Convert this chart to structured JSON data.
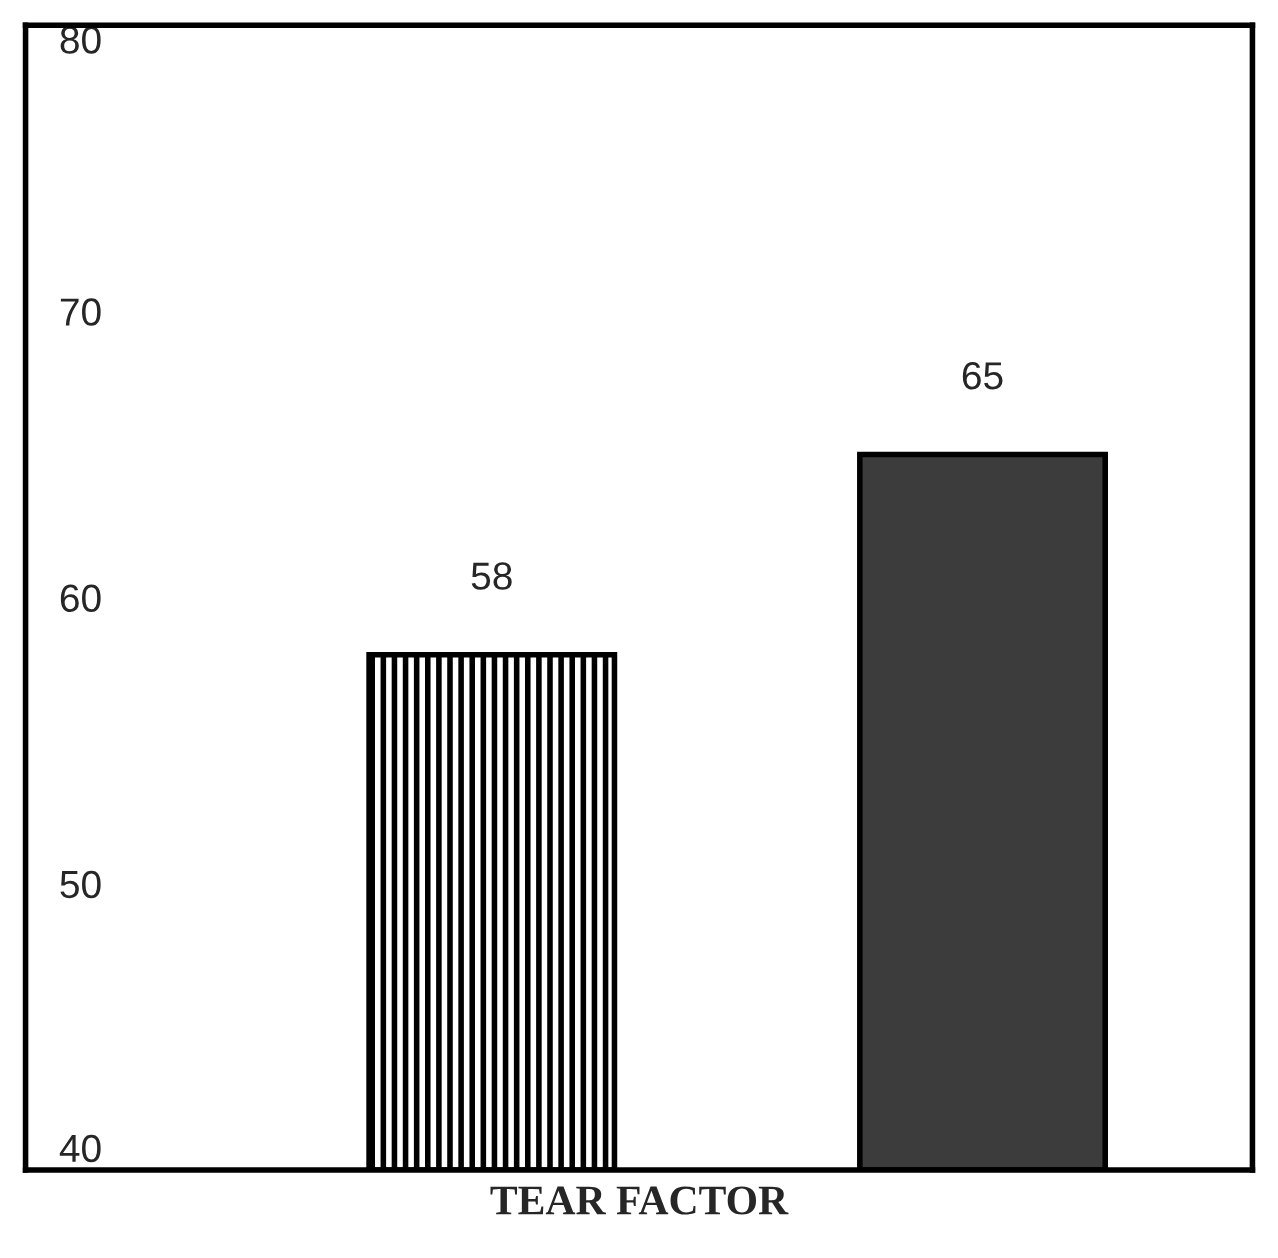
{
  "chart_data": {
    "type": "bar",
    "xlabel": "TEAR FACTOR",
    "categories": [
      null,
      null
    ],
    "values": [
      58,
      65
    ],
    "colors": [
      "#000000",
      "#3c3c3c"
    ],
    "ylim": [
      40,
      80
    ],
    "yticks": [
      40,
      50,
      60,
      70,
      80
    ],
    "data_labels": true,
    "grid": false,
    "legend": false
  }
}
